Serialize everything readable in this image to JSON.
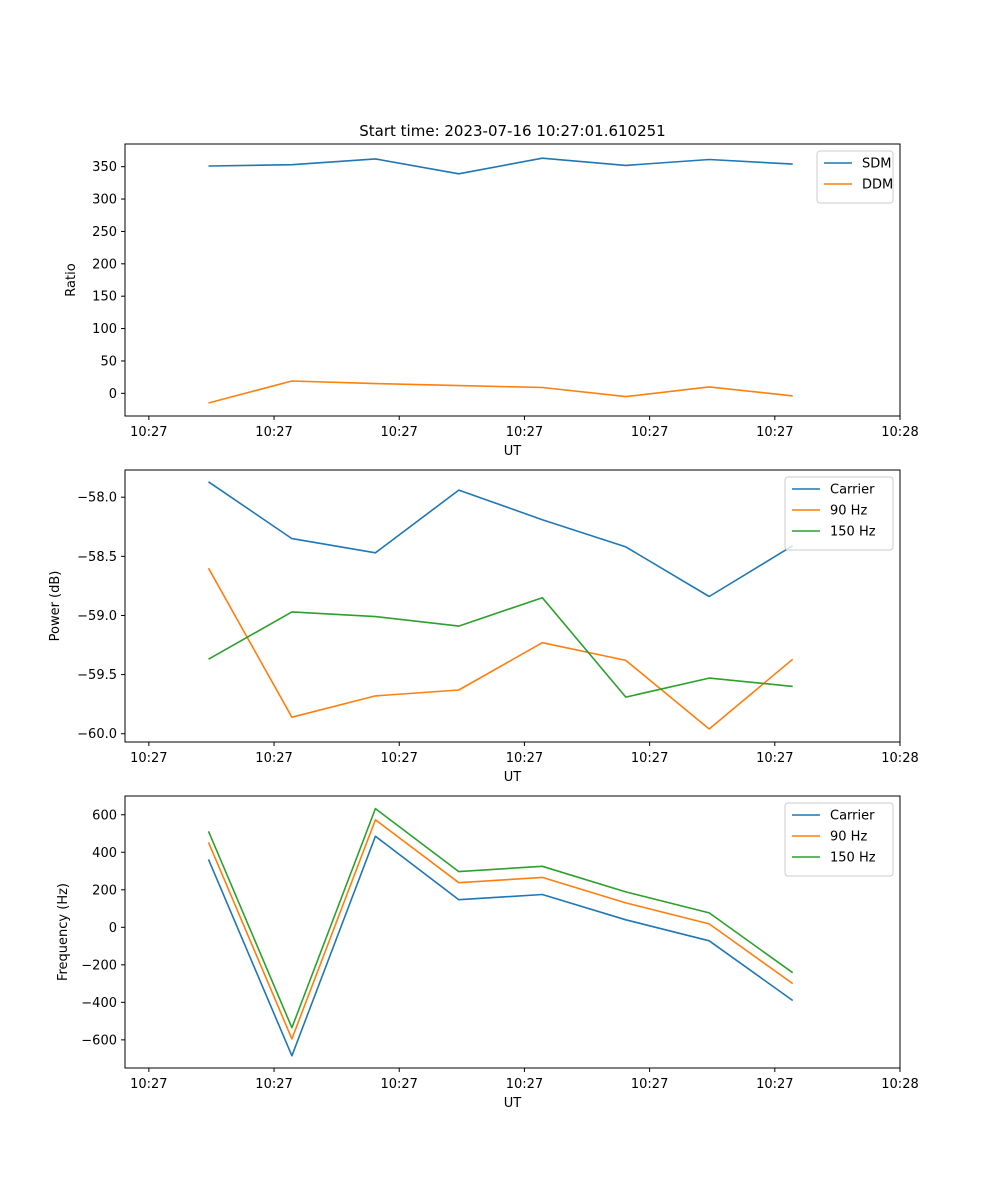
{
  "figure_title": "Start time: 2023-07-16 10:27:01.610251",
  "colors": {
    "blue": "#1f77b4",
    "orange": "#ff7f0e",
    "green": "#2ca02c"
  },
  "chart_data": [
    {
      "type": "line",
      "title": "Start time: 2023-07-16 10:27:01.610251",
      "xlabel": "UT",
      "ylabel": "Ratio",
      "x": [
        0.7,
        1.4,
        2.1,
        2.8,
        3.5,
        4.2,
        4.9,
        5.6
      ],
      "xlim": [
        0,
        6.5
      ],
      "xticks": [
        0.2,
        1.25,
        2.3,
        3.35,
        4.4,
        5.45,
        6.5
      ],
      "xtick_labels": [
        "10:27",
        "10:27",
        "10:27",
        "10:27",
        "10:27",
        "10:27",
        "10:28"
      ],
      "ylim": [
        -35,
        385
      ],
      "yticks": [
        0,
        50,
        100,
        150,
        200,
        250,
        300,
        350
      ],
      "ytick_labels": [
        "0",
        "50",
        "100",
        "150",
        "200",
        "250",
        "300",
        "350"
      ],
      "legend": "top-right",
      "series": [
        {
          "name": "SDM",
          "color": "#1f77b4",
          "values": [
            351,
            353,
            362,
            339,
            363,
            352,
            361,
            354
          ]
        },
        {
          "name": "DDM",
          "color": "#ff7f0e",
          "values": [
            -15,
            19,
            15,
            12,
            9,
            -5,
            10,
            -4
          ]
        }
      ]
    },
    {
      "type": "line",
      "title": "",
      "xlabel": "UT",
      "ylabel": "Power (dB)",
      "x": [
        0.7,
        1.4,
        2.1,
        2.8,
        3.5,
        4.2,
        4.9,
        5.6
      ],
      "xlim": [
        0,
        6.5
      ],
      "xticks": [
        0.2,
        1.25,
        2.3,
        3.35,
        4.4,
        5.45,
        6.5
      ],
      "xtick_labels": [
        "10:27",
        "10:27",
        "10:27",
        "10:27",
        "10:27",
        "10:27",
        "10:28"
      ],
      "ylim": [
        -60.07,
        -57.77
      ],
      "yticks": [
        -60.0,
        -59.5,
        -59.0,
        -58.5,
        -58.0
      ],
      "ytick_labels": [
        "−60.0",
        "−59.5",
        "−59.0",
        "−58.5",
        "−58.0"
      ],
      "legend": "top-right",
      "series": [
        {
          "name": "Carrier",
          "color": "#1f77b4",
          "values": [
            -57.87,
            -58.35,
            -58.47,
            -57.94,
            -58.19,
            -58.42,
            -58.84,
            -58.41
          ]
        },
        {
          "name": "90 Hz",
          "color": "#ff7f0e",
          "values": [
            -58.6,
            -59.86,
            -59.68,
            -59.63,
            -59.23,
            -59.38,
            -59.96,
            -59.37
          ]
        },
        {
          "name": "150 Hz",
          "color": "#2ca02c",
          "values": [
            -59.37,
            -58.97,
            -59.01,
            -59.09,
            -58.85,
            -59.69,
            -59.53,
            -59.6
          ]
        }
      ]
    },
    {
      "type": "line",
      "title": "",
      "xlabel": "UT",
      "ylabel": "Frequency (Hz)",
      "x": [
        0.7,
        1.4,
        2.1,
        2.8,
        3.5,
        4.2,
        4.9,
        5.6
      ],
      "xlim": [
        0,
        6.5
      ],
      "xticks": [
        0.2,
        1.25,
        2.3,
        3.35,
        4.4,
        5.45,
        6.5
      ],
      "xtick_labels": [
        "10:27",
        "10:27",
        "10:27",
        "10:27",
        "10:27",
        "10:27",
        "10:28"
      ],
      "ylim": [
        -750,
        700
      ],
      "yticks": [
        -600,
        -400,
        -200,
        0,
        200,
        400,
        600
      ],
      "ytick_labels": [
        "−600",
        "−400",
        "−200",
        "0",
        "200",
        "400",
        "600"
      ],
      "legend": "top-right",
      "series": [
        {
          "name": "Carrier",
          "color": "#1f77b4",
          "values": [
            362,
            -685,
            485,
            147,
            175,
            40,
            -72,
            -390
          ]
        },
        {
          "name": "90 Hz",
          "color": "#ff7f0e",
          "values": [
            453,
            -595,
            573,
            238,
            266,
            130,
            18,
            -300
          ]
        },
        {
          "name": "150 Hz",
          "color": "#2ca02c",
          "values": [
            512,
            -535,
            633,
            297,
            325,
            189,
            77,
            -242
          ]
        }
      ]
    }
  ]
}
